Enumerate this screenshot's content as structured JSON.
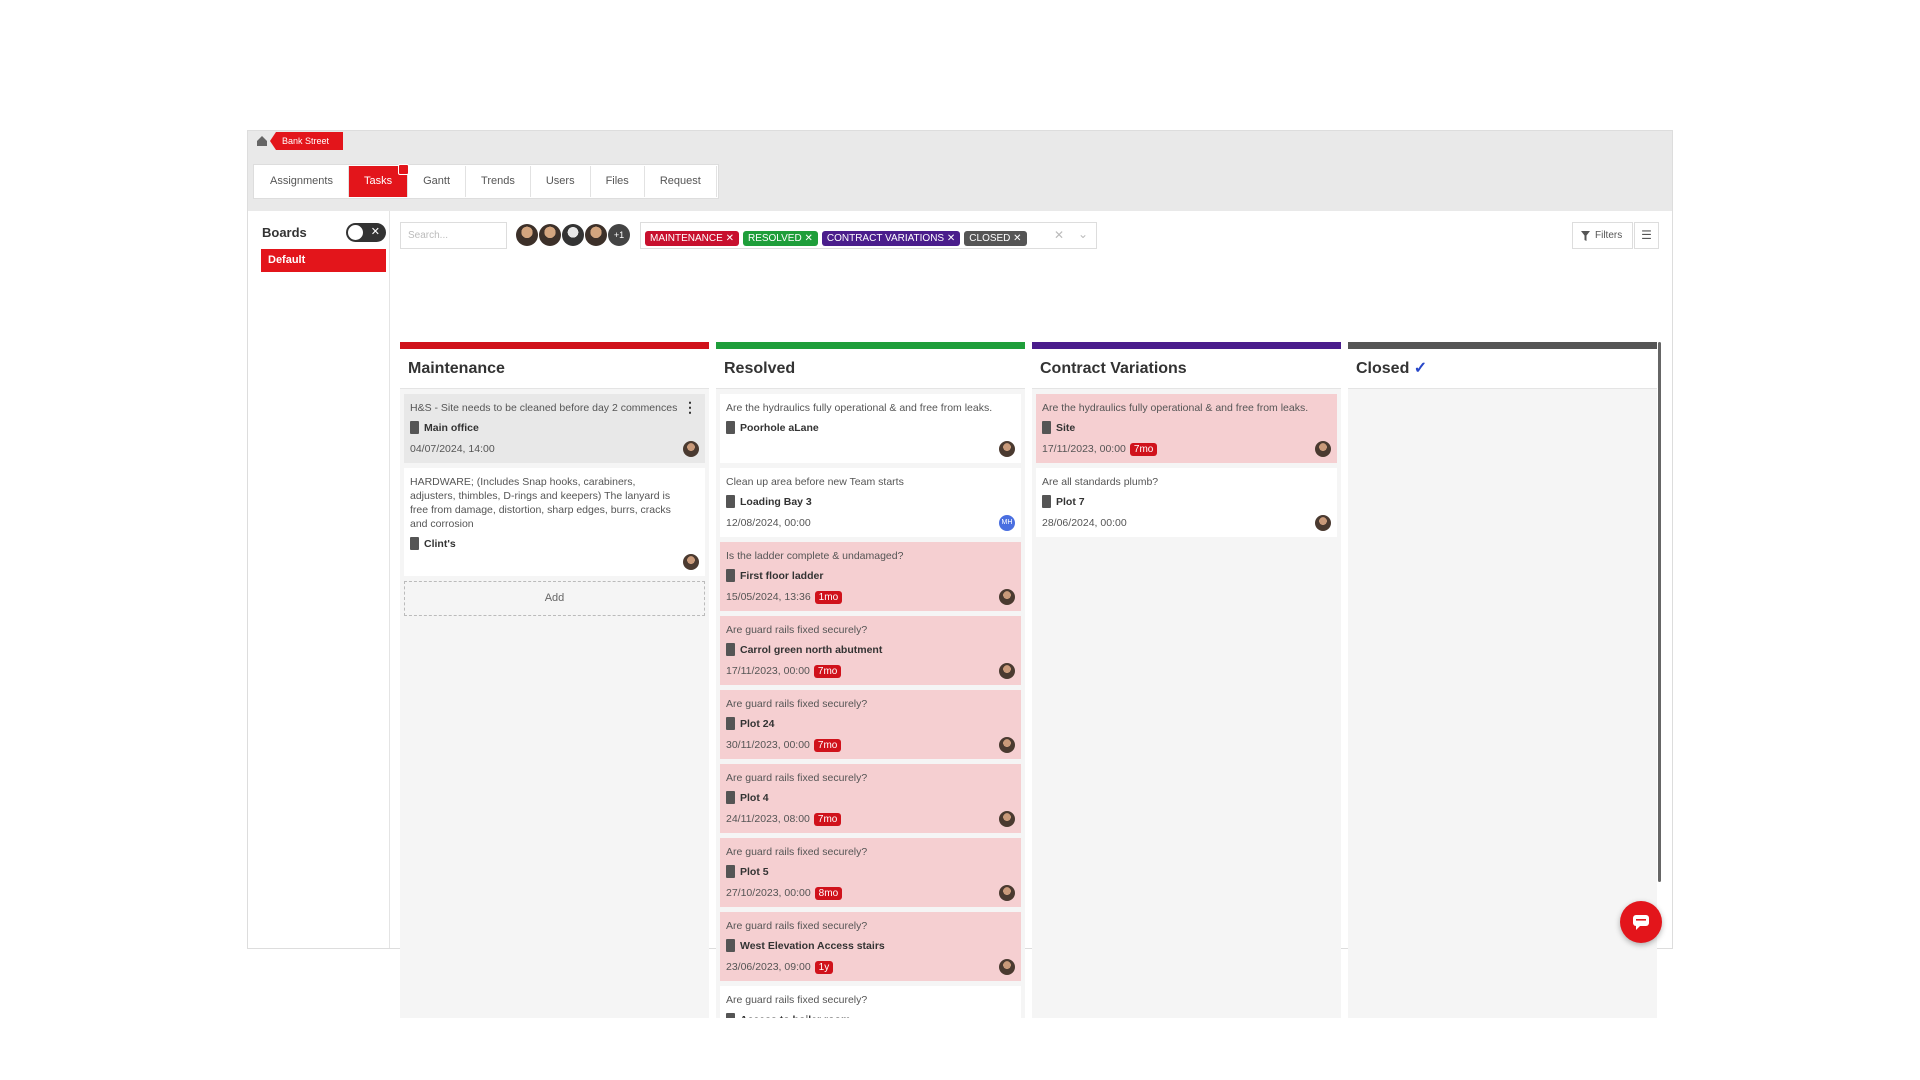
{
  "breadcrumb": {
    "site": "Bank Street"
  },
  "tabs": [
    "Assignments",
    "Tasks",
    "Gantt",
    "Trends",
    "Users",
    "Files",
    "Request"
  ],
  "sidebar": {
    "title": "Boards",
    "boards": [
      "Default"
    ]
  },
  "toolbar": {
    "search_placeholder": "Search...",
    "more_users": "+1",
    "filters_button": "Filters",
    "chips": [
      {
        "label": "MAINTENANCE",
        "color": "#c8102e"
      },
      {
        "label": "RESOLVED",
        "color": "#1e9e3a"
      },
      {
        "label": "CONTRACT VARIATIONS",
        "color": "#4a1d8c"
      },
      {
        "label": "CLOSED",
        "color": "#555555"
      }
    ]
  },
  "columns": [
    {
      "title": "Maintenance",
      "color": "#d0121b",
      "add_button": "Add",
      "cards": [
        {
          "text": "H&S - Site needs to be cleaned before day 2 commences",
          "location": "Main office",
          "date": "04/07/2024, 14:00"
        },
        {
          "text": "HARDWARE; (Includes Snap hooks, carabiners, adjusters, thimbles, D-rings and keepers) The lanyard is free from damage, distortion, sharp edges, burrs, cracks and corrosion",
          "location": "Clint's"
        }
      ]
    },
    {
      "title": "Resolved",
      "color": "#1e9e3a",
      "cards": [
        {
          "text": "Are the hydraulics fully operational & and free from leaks.",
          "location": "Poorhole aLane"
        },
        {
          "text": "Clean up area before new Team starts",
          "location": "Loading Bay 3",
          "date": "12/08/2024, 00:00",
          "initials": "MH"
        },
        {
          "text": "Is the ladder complete & undamaged?",
          "location": "First floor ladder",
          "date": "15/05/2024, 13:36",
          "badge": "1mo"
        },
        {
          "text": "Are guard rails fixed securely?",
          "location": "Carrol green north abutment",
          "date": "17/11/2023, 00:00",
          "badge": "7mo"
        },
        {
          "text": "Are guard rails fixed securely?",
          "location": "Plot 24",
          "date": "30/11/2023, 00:00",
          "badge": "7mo"
        },
        {
          "text": "Are guard rails fixed securely?",
          "location": "Plot 4",
          "date": "24/11/2023, 08:00",
          "badge": "7mo"
        },
        {
          "text": "Are guard rails fixed securely?",
          "location": "Plot 5",
          "date": "27/10/2023, 00:00",
          "badge": "8mo"
        },
        {
          "text": "Are guard rails fixed securely?",
          "location": "West Elevation Access stairs",
          "date": "23/06/2023, 09:00",
          "badge": "1y"
        },
        {
          "text": "Are guard rails fixed securely?",
          "location": "Access to boiler room"
        }
      ]
    },
    {
      "title": "Contract Variations",
      "color": "#4a1d8c",
      "cards": [
        {
          "text": "Are the hydraulics fully operational & and free from leaks.",
          "location": "Site",
          "date": "17/11/2023, 00:00",
          "badge": "7mo"
        },
        {
          "text": "Are all standards plumb?",
          "location": "Plot 7",
          "date": "28/06/2024, 00:00"
        }
      ]
    },
    {
      "title": "Closed",
      "color": "#555555",
      "cards": []
    }
  ]
}
